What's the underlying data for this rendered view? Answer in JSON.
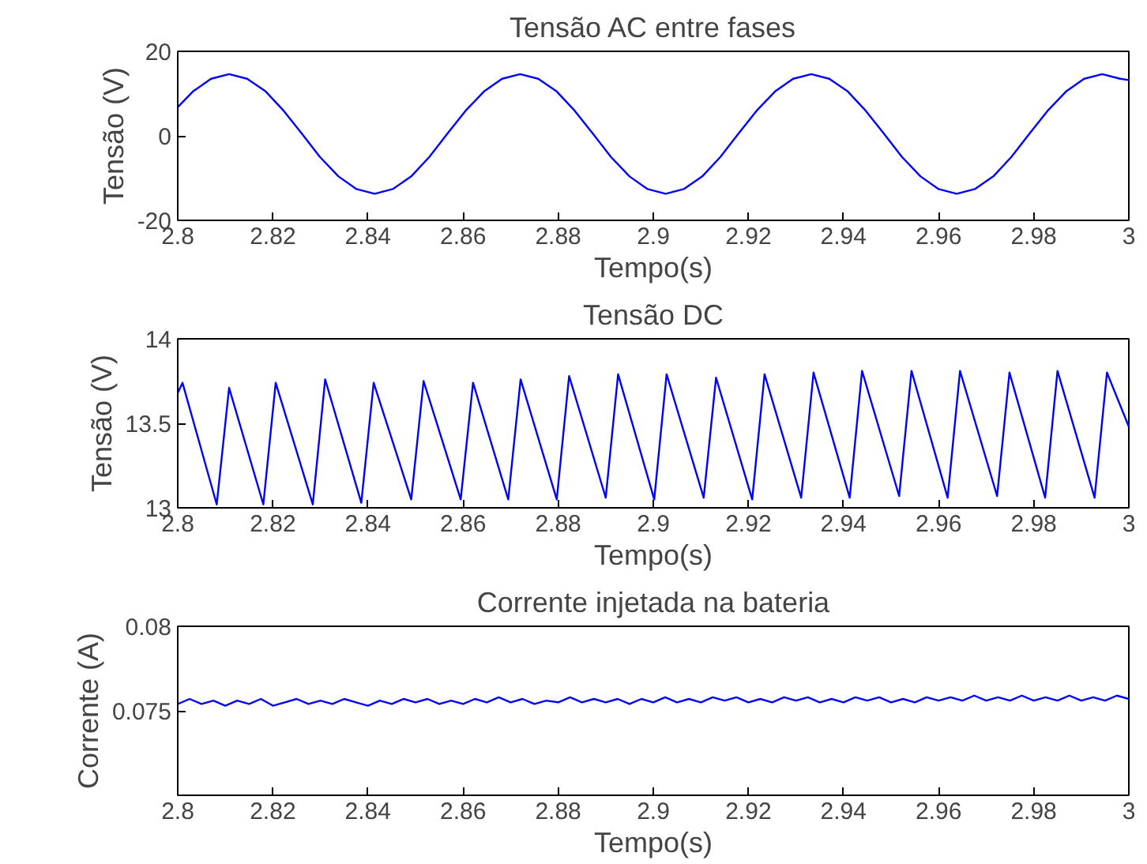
{
  "chart_data": [
    {
      "type": "line",
      "title": "Tensão AC entre fases",
      "xlabel": "Tempo(s)",
      "ylabel": "Tensão (V)",
      "grid": false,
      "x": [
        2.8,
        2.8032,
        2.807,
        2.8108,
        2.8146,
        2.8185,
        2.8223,
        2.8261,
        2.8299,
        2.8338,
        2.8376,
        2.8414,
        2.8452,
        2.8491,
        2.8529,
        2.8567,
        2.8605,
        2.8644,
        2.8682,
        2.872,
        2.8758,
        2.8797,
        2.8835,
        2.8873,
        2.8911,
        2.895,
        2.8988,
        2.9026,
        2.9064,
        2.9103,
        2.9141,
        2.9179,
        2.9217,
        2.9256,
        2.9294,
        2.9332,
        2.937,
        2.9409,
        2.9447,
        2.9485,
        2.9523,
        2.9562,
        2.96,
        2.9638,
        2.9676,
        2.9715,
        2.9753,
        2.9791,
        2.9829,
        2.9868,
        2.9906,
        2.9944,
        2.9982,
        3.0
      ],
      "series": [
        {
          "color": "#0000ff",
          "values": [
            6.8,
            10.5,
            13.5,
            14.6,
            13.5,
            10.5,
            5.9,
            0.5,
            -5.0,
            -9.6,
            -12.6,
            -13.7,
            -12.6,
            -9.6,
            -5.0,
            0.5,
            5.9,
            10.5,
            13.5,
            14.6,
            13.5,
            10.5,
            5.9,
            0.5,
            -5.0,
            -9.6,
            -12.6,
            -13.7,
            -12.6,
            -9.6,
            -5.0,
            0.5,
            5.9,
            10.5,
            13.5,
            14.6,
            13.5,
            10.5,
            5.9,
            0.5,
            -5.0,
            -9.6,
            -12.6,
            -13.7,
            -12.6,
            -9.6,
            -5.0,
            0.5,
            5.9,
            10.5,
            13.5,
            14.6,
            13.5,
            13.2
          ]
        }
      ],
      "xlim": [
        2.8,
        3
      ],
      "ylim": [
        -20,
        20
      ],
      "xticks": [
        2.8,
        2.82,
        2.84,
        2.86,
        2.88,
        2.9,
        2.92,
        2.94,
        2.96,
        2.98,
        3
      ],
      "yticks": [
        -20,
        0,
        20
      ]
    },
    {
      "type": "line",
      "title": "Tensão DC",
      "xlabel": "Tempo(s)",
      "ylabel": "Tensão (V)",
      "grid": false,
      "x": [
        2.8,
        2.801,
        2.8082,
        2.8108,
        2.818,
        2.8206,
        2.8284,
        2.831,
        2.8386,
        2.8412,
        2.8491,
        2.8517,
        2.8595,
        2.8621,
        2.8695,
        2.8721,
        2.8797,
        2.8823,
        2.89,
        2.8926,
        2.9002,
        2.9028,
        2.9106,
        2.9132,
        2.9208,
        2.9234,
        2.9311,
        2.9337,
        2.9413,
        2.9439,
        2.9517,
        2.9543,
        2.9619,
        2.9645,
        2.9723,
        2.9749,
        2.9824,
        2.985,
        2.9928,
        2.9954,
        3.0
      ],
      "series": [
        {
          "color": "#0000ff",
          "values": [
            13.68,
            13.74,
            13.02,
            13.71,
            13.02,
            13.74,
            13.02,
            13.76,
            13.03,
            13.74,
            13.05,
            13.75,
            13.05,
            13.74,
            13.05,
            13.76,
            13.05,
            13.78,
            13.06,
            13.79,
            13.05,
            13.79,
            13.06,
            13.77,
            13.05,
            13.79,
            13.06,
            13.8,
            13.06,
            13.81,
            13.07,
            13.81,
            13.06,
            13.81,
            13.07,
            13.8,
            13.06,
            13.81,
            13.06,
            13.8,
            13.48
          ]
        }
      ],
      "xlim": [
        2.8,
        3
      ],
      "ylim": [
        13,
        14
      ],
      "xticks": [
        2.8,
        2.82,
        2.84,
        2.86,
        2.88,
        2.9,
        2.92,
        2.94,
        2.96,
        2.98,
        3
      ],
      "yticks": [
        13,
        13.5,
        14
      ]
    },
    {
      "type": "line",
      "title": "Corrente injetada na bateria",
      "xlabel": "Tempo(s)",
      "ylabel": "Corrente (A)",
      "grid": false,
      "x": [
        2.8,
        2.8025,
        2.805,
        2.8075,
        2.81,
        2.8125,
        2.815,
        2.8175,
        2.82,
        2.8225,
        2.825,
        2.8275,
        2.83,
        2.8325,
        2.835,
        2.8375,
        2.84,
        2.8425,
        2.845,
        2.8475,
        2.85,
        2.8525,
        2.855,
        2.8575,
        2.86,
        2.8625,
        2.865,
        2.8675,
        2.87,
        2.8725,
        2.875,
        2.8775,
        2.88,
        2.8825,
        2.885,
        2.8875,
        2.89,
        2.8925,
        2.895,
        2.8975,
        2.9,
        2.9025,
        2.905,
        2.9075,
        2.91,
        2.9125,
        2.915,
        2.9175,
        2.92,
        2.9225,
        2.925,
        2.9275,
        2.93,
        2.9325,
        2.935,
        2.9375,
        2.94,
        2.9425,
        2.945,
        2.9475,
        2.95,
        2.9525,
        2.955,
        2.9575,
        2.96,
        2.9625,
        2.965,
        2.9675,
        2.97,
        2.9725,
        2.975,
        2.9775,
        2.98,
        2.9825,
        2.985,
        2.9875,
        2.99,
        2.9925,
        2.995,
        2.9975,
        3.0
      ],
      "series": [
        {
          "color": "#0000ff",
          "values": [
            0.0754,
            0.0757,
            0.0754,
            0.0756,
            0.0753,
            0.0756,
            0.0754,
            0.0757,
            0.0753,
            0.0755,
            0.0757,
            0.0754,
            0.0756,
            0.0754,
            0.0757,
            0.0755,
            0.0753,
            0.0756,
            0.0754,
            0.0757,
            0.0755,
            0.0757,
            0.0754,
            0.0756,
            0.0754,
            0.0757,
            0.0755,
            0.0758,
            0.0755,
            0.0757,
            0.0754,
            0.0756,
            0.0755,
            0.0758,
            0.0755,
            0.0757,
            0.0755,
            0.0757,
            0.0754,
            0.0757,
            0.0755,
            0.0758,
            0.0755,
            0.0757,
            0.0755,
            0.0758,
            0.0756,
            0.0758,
            0.0755,
            0.0757,
            0.0755,
            0.0758,
            0.0756,
            0.0758,
            0.0755,
            0.0757,
            0.0755,
            0.0758,
            0.0756,
            0.0758,
            0.0755,
            0.0757,
            0.0755,
            0.0758,
            0.0756,
            0.0758,
            0.0756,
            0.0759,
            0.0756,
            0.0758,
            0.0756,
            0.0759,
            0.0756,
            0.0758,
            0.0756,
            0.0759,
            0.0756,
            0.0758,
            0.0756,
            0.0759,
            0.0757
          ]
        }
      ],
      "xlim": [
        2.8,
        3
      ],
      "ylim": [
        0.07,
        0.08
      ],
      "xticks": [
        2.8,
        2.82,
        2.84,
        2.86,
        2.88,
        2.9,
        2.92,
        2.94,
        2.96,
        2.98,
        3
      ],
      "yticks": [
        0.075,
        0.08
      ]
    }
  ]
}
